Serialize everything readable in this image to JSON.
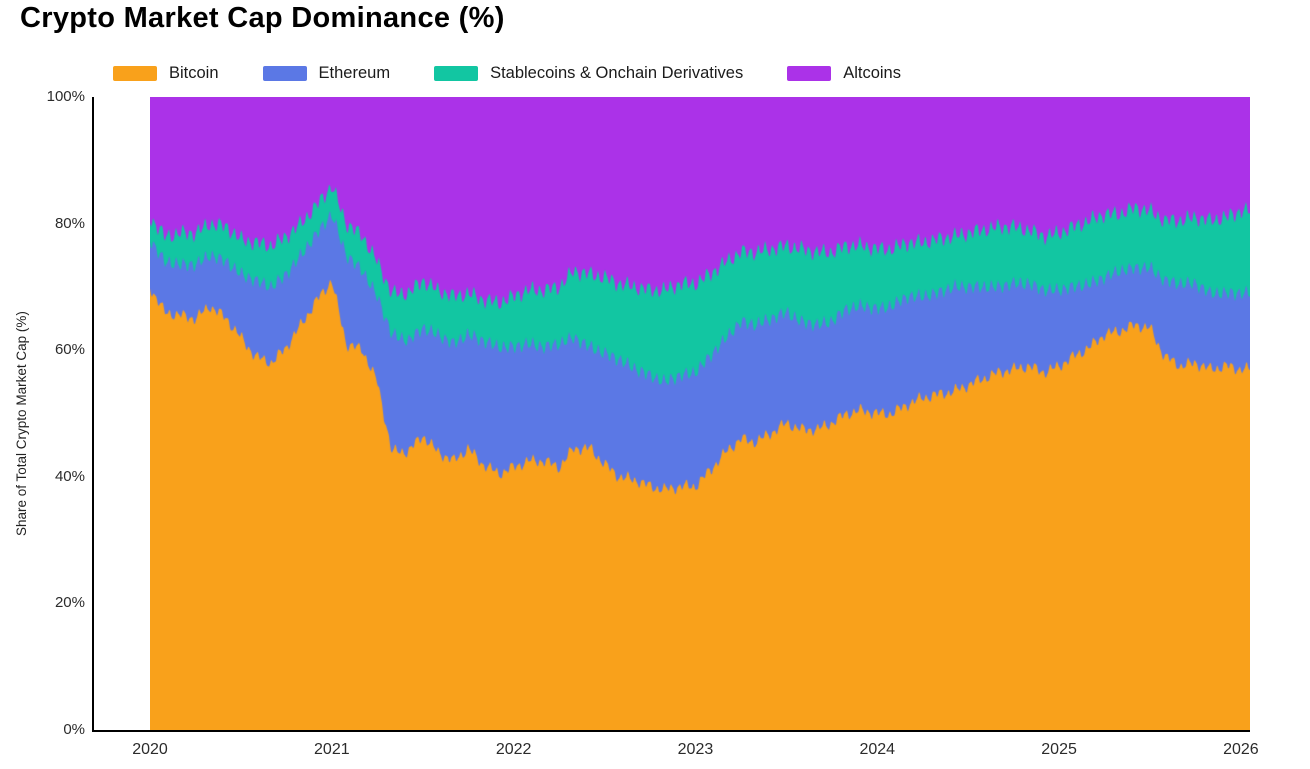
{
  "chart_data": {
    "type": "area",
    "stacked": true,
    "title": "Crypto Market Cap Dominance (%)",
    "ylabel": "Share of Total Crypto Market Cap (%)",
    "xlabel": "",
    "legend_position": "top",
    "grid": false,
    "xlim": [
      2020,
      2026.05
    ],
    "ylim": [
      0,
      100
    ],
    "x_ticks": [
      2020,
      2021,
      2022,
      2023,
      2024,
      2025,
      2026
    ],
    "x_tick_labels": [
      "2020",
      "2021",
      "2022",
      "2023",
      "2024",
      "2025",
      "2026"
    ],
    "y_ticks": [
      0,
      20,
      40,
      60,
      80,
      100
    ],
    "y_tick_labels": [
      "0%",
      "20%",
      "40%",
      "60%",
      "80%",
      "100%"
    ],
    "x": [
      2020.0,
      2020.08,
      2020.17,
      2020.25,
      2020.33,
      2020.42,
      2020.5,
      2020.58,
      2020.67,
      2020.75,
      2020.83,
      2020.92,
      2021.0,
      2021.08,
      2021.17,
      2021.25,
      2021.33,
      2021.42,
      2021.5,
      2021.58,
      2021.67,
      2021.75,
      2021.83,
      2021.92,
      2022.0,
      2022.08,
      2022.17,
      2022.25,
      2022.33,
      2022.42,
      2022.5,
      2022.58,
      2022.67,
      2022.75,
      2022.83,
      2022.92,
      2023.0,
      2023.08,
      2023.17,
      2023.25,
      2023.33,
      2023.42,
      2023.5,
      2023.58,
      2023.67,
      2023.75,
      2023.83,
      2023.92,
      2024.0,
      2024.08,
      2024.17,
      2024.25,
      2024.33,
      2024.42,
      2024.5,
      2024.58,
      2024.67,
      2024.75,
      2024.83,
      2024.92,
      2025.0,
      2025.08,
      2025.17,
      2025.25,
      2025.33,
      2025.42,
      2025.5,
      2025.58,
      2025.67,
      2025.75,
      2025.83,
      2025.92,
      2026.0,
      2026.05
    ],
    "series": [
      {
        "name": "Bitcoin",
        "color": "#F9A11B",
        "values": [
          70,
          66,
          65.5,
          65,
          67,
          65,
          62,
          59,
          58,
          60.5,
          64,
          68,
          71,
          61,
          60,
          55,
          44,
          44,
          46.5,
          44,
          42.5,
          44.5,
          42,
          40.5,
          41.5,
          42.5,
          42.5,
          41.5,
          44.5,
          44.5,
          42,
          40,
          39.5,
          38.5,
          38,
          38.5,
          38.5,
          41,
          44,
          46,
          45.5,
          47,
          48.5,
          47.5,
          47.5,
          48.5,
          50,
          50.5,
          50,
          50,
          51.5,
          52.5,
          53,
          53.5,
          54.5,
          55.5,
          56.5,
          57,
          57.5,
          56.5,
          57.5,
          59,
          60.5,
          62.5,
          63,
          64,
          63.5,
          59,
          57.5,
          58,
          57,
          57.5,
          57,
          57
        ]
      },
      {
        "name": "Ethereum",
        "color": "#5B78E5",
        "values": [
          7.5,
          8,
          8,
          8.5,
          8,
          9,
          10,
          12,
          12,
          11.5,
          11,
          10.5,
          10.5,
          14,
          12.5,
          13.5,
          18.5,
          17.5,
          17,
          18.5,
          18.5,
          18,
          19.5,
          20,
          19,
          18.5,
          18,
          19.5,
          17.5,
          16,
          17.5,
          18.5,
          17.5,
          17.5,
          17,
          17.5,
          18,
          18,
          18,
          18.5,
          18.5,
          18,
          17.5,
          17,
          16.5,
          16,
          16.5,
          16.5,
          16.5,
          17,
          17,
          16,
          16,
          16.5,
          15.5,
          14.5,
          13.5,
          13.5,
          13,
          13,
          12,
          11,
          10,
          9,
          9.5,
          9,
          9.5,
          12,
          13,
          12.5,
          12,
          11.5,
          12,
          12
        ]
      },
      {
        "name": "Stablecoins & Onchain Derivatives",
        "color": "#12C6A2",
        "values": [
          3.5,
          4,
          5,
          5,
          5,
          5.5,
          5.5,
          6,
          6.5,
          6,
          5,
          4.5,
          4.5,
          5,
          5.5,
          5.5,
          6.5,
          7.5,
          7.5,
          7,
          7.5,
          6.5,
          6.5,
          7,
          8,
          8.5,
          9,
          9,
          10.5,
          11.5,
          12,
          12,
          13,
          13.5,
          14.5,
          14.5,
          14,
          13,
          12,
          11,
          11.5,
          11,
          10.5,
          11.5,
          11.5,
          11,
          10,
          9.5,
          9.5,
          9,
          8.5,
          8.5,
          8.5,
          8,
          8.5,
          9,
          9.5,
          9,
          8.5,
          8.5,
          9,
          9.5,
          10,
          10,
          9,
          9.5,
          9,
          9.5,
          10,
          10.5,
          11.5,
          12,
          13,
          13
        ]
      },
      {
        "name": "Altcoins",
        "color": "#AB32E8",
        "values": [
          19,
          22,
          21.5,
          21.5,
          20,
          20.5,
          22.5,
          23,
          23.5,
          22,
          20,
          17,
          14,
          20,
          22,
          26,
          31,
          31,
          29,
          30.5,
          31.5,
          31,
          32,
          32.5,
          31.5,
          30.5,
          30.5,
          30,
          27.5,
          28,
          28.5,
          29.5,
          30,
          30.5,
          30.5,
          29.5,
          29.5,
          28,
          26,
          24.5,
          24.5,
          24,
          23.5,
          24,
          24.5,
          24.5,
          23.5,
          23.5,
          24,
          24,
          23,
          23,
          22.5,
          22,
          21.5,
          21,
          20.5,
          20.5,
          21,
          22,
          21.5,
          20.5,
          19.5,
          18.5,
          18.5,
          17.5,
          18,
          19.5,
          19.5,
          19,
          19.5,
          19,
          18,
          18
        ]
      }
    ]
  }
}
